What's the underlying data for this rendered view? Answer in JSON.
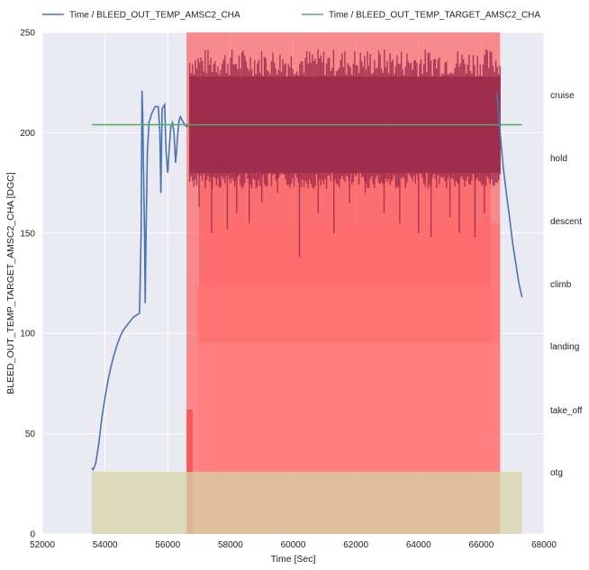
{
  "chart_data": {
    "type": "line",
    "xlabel": "Time [Sec]",
    "ylabel": "BLEED_OUT_TEMP_TARGET_AMSC2_CHA [DGC]",
    "xlim": [
      52000,
      68000
    ],
    "ylim": [
      0,
      250
    ],
    "xticks": [
      52000,
      54000,
      56000,
      58000,
      60000,
      62000,
      64000,
      66000,
      68000
    ],
    "yticks": [
      0,
      50,
      100,
      150,
      200,
      250
    ],
    "grid": true,
    "legend_position": "top",
    "series": [
      {
        "name": "Time / BLEED_OUT_TEMP_AMSC2_CHA",
        "color": "#4c72b0",
        "x": [
          53580,
          53620,
          53700,
          53800,
          53900,
          54000,
          54100,
          54200,
          54300,
          54400,
          54500,
          54600,
          54700,
          54800,
          54900,
          55000,
          55100,
          55150,
          55180,
          55200,
          55230,
          55260,
          55280,
          55310,
          55350,
          55400,
          55500,
          55600,
          55700,
          55750,
          55780,
          55800,
          55820,
          55900,
          55950,
          56000,
          56050,
          56100,
          56150,
          56200,
          56250,
          56300,
          56350,
          56400,
          56500,
          56600,
          56700
        ],
        "y": [
          33,
          32,
          35,
          45,
          58,
          68,
          77,
          84,
          90,
          95,
          99,
          102,
          104,
          106,
          108,
          109,
          110,
          150,
          221,
          210,
          180,
          150,
          115,
          150,
          190,
          205,
          210,
          213,
          213,
          200,
          170,
          190,
          212,
          214,
          190,
          180,
          193,
          203,
          205,
          200,
          185,
          195,
          205,
          208,
          205,
          203,
          204
        ]
      },
      {
        "name": "Time / BLEED_OUT_TEMP_TARGET_AMSC2_CHA",
        "color": "#55a868",
        "x": [
          53580,
          67300
        ],
        "y": [
          204,
          204
        ]
      }
    ],
    "cruise_band": {
      "x": [
        56700,
        66600
      ],
      "mid": 205,
      "upper": 228,
      "lower": 180,
      "top_spikes": 242,
      "bottom_spikes": 137
    },
    "descent_tail": {
      "x": [
        66500,
        66600,
        66700,
        66800,
        66900,
        67000,
        67100,
        67200,
        67300
      ],
      "y": [
        220,
        200,
        183,
        170,
        158,
        145,
        135,
        125,
        118
      ]
    },
    "phases": [
      {
        "label": "cruise",
        "start": 56600,
        "end": 66600,
        "top": 250,
        "color": "#ff3b3b"
      },
      {
        "label": "hold",
        "start": 57000,
        "end": 66300,
        "top": 187,
        "color": "#ff5a5a"
      },
      {
        "label": "descent",
        "start": 57300,
        "end": 66600,
        "top": 155,
        "color": "#ff6b6b"
      },
      {
        "label": "climb",
        "start": 56900,
        "end": 66400,
        "top": 124,
        "color": "#ff7777"
      },
      {
        "label": "landing",
        "start": 56600,
        "end": 66600,
        "top": 95,
        "color": "#ff8888"
      },
      {
        "label": "take_off",
        "start": 56600,
        "end": 56800,
        "top": 62,
        "color": "#ff3030"
      },
      {
        "label": "otg",
        "start": 53580,
        "end": 67300,
        "top": 31,
        "color": "#d6d4a8"
      }
    ]
  }
}
